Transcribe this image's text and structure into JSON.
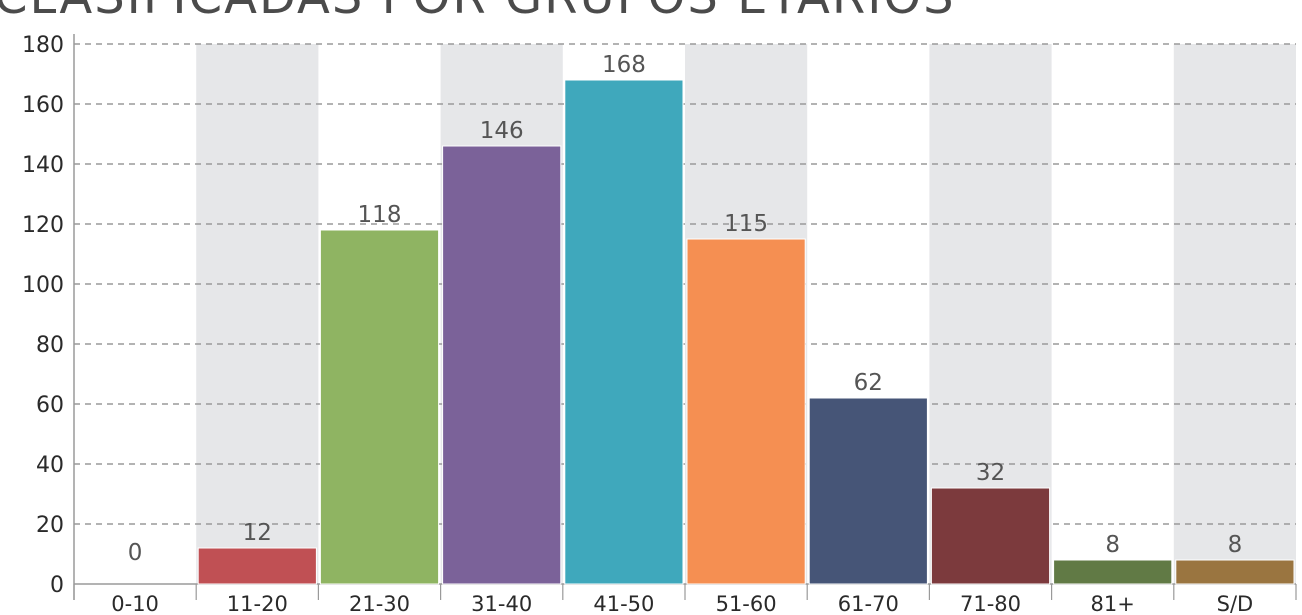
{
  "chart_data": {
    "type": "bar",
    "title": "CLASIFICADAS POR GRUPOS ETARIOS",
    "categories": [
      "0-10",
      "11-20",
      "21-30",
      "31-40",
      "41-50",
      "51-60",
      "61-70",
      "71-80",
      "81+",
      "S/D"
    ],
    "values": [
      0,
      12,
      118,
      146,
      168,
      115,
      62,
      32,
      8,
      8
    ],
    "data_labels": [
      "0",
      "12",
      "118",
      "146",
      "168",
      "115",
      "62",
      "32",
      "8",
      "8"
    ],
    "ylim": [
      0,
      180
    ],
    "yticks": [
      0,
      20,
      40,
      60,
      80,
      100,
      120,
      140,
      160,
      180
    ],
    "grid": true,
    "bar_colors": [
      "#cccccc",
      "#c05054",
      "#8fb462",
      "#7b6299",
      "#3fa8bc",
      "#f58f52",
      "#465577",
      "#7c3a3d",
      "#617a45",
      "#9a7540"
    ],
    "band_color": "#e6e7e9",
    "grid_color": "#9a9a9a"
  }
}
